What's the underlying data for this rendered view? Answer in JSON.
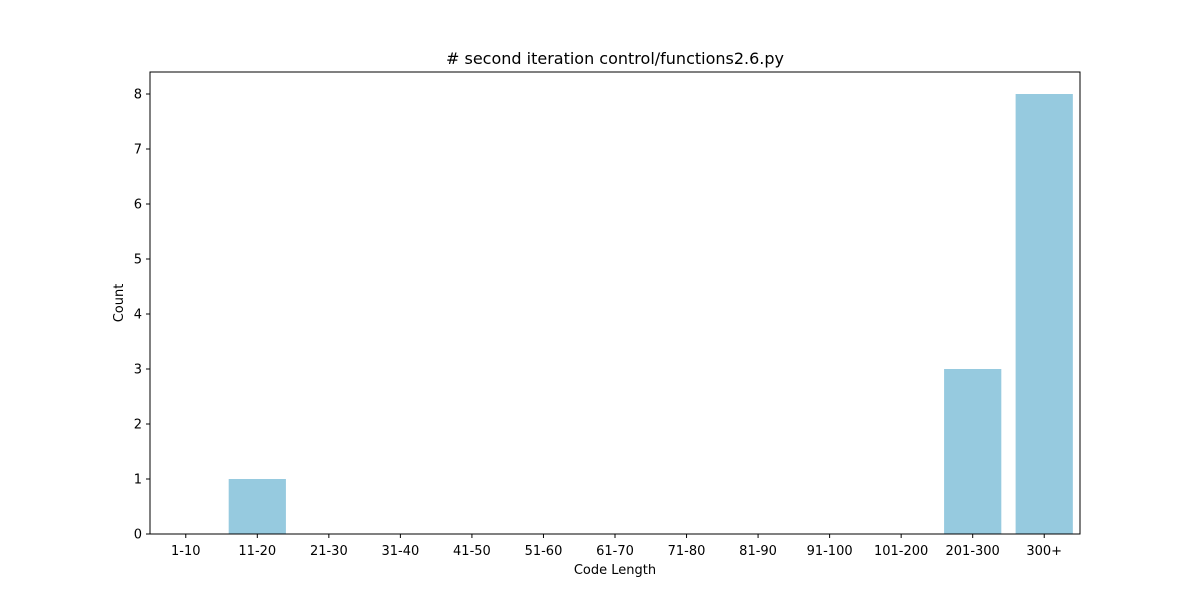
{
  "chart_data": {
    "type": "bar",
    "title": "# second iteration control/functions2.6.py",
    "xlabel": "Code Length",
    "ylabel": "Count",
    "categories": [
      "1-10",
      "11-20",
      "21-30",
      "31-40",
      "41-50",
      "51-60",
      "61-70",
      "71-80",
      "81-90",
      "91-100",
      "101-200",
      "201-300",
      "300+"
    ],
    "values": [
      0,
      1,
      0,
      0,
      0,
      0,
      0,
      0,
      0,
      0,
      0,
      3,
      8
    ],
    "ylim": [
      0,
      8.4
    ],
    "yticks": [
      0,
      1,
      2,
      3,
      4,
      5,
      6,
      7,
      8
    ],
    "bar_color": "#96cadf",
    "grid": false,
    "legend": false
  }
}
